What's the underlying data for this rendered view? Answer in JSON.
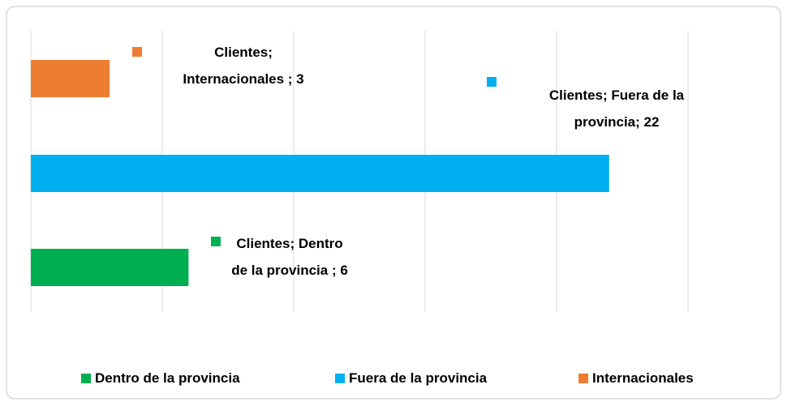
{
  "chart_data": {
    "type": "barh",
    "series": [
      {
        "name": "Dentro de la provincia",
        "color": "#00b050",
        "values": [
          6
        ],
        "value_labels": [
          "Clientes; Dentro de la provincia ; 6"
        ]
      },
      {
        "name": "Fuera de la provincia",
        "color": "#00b0f0",
        "values": [
          22
        ],
        "value_labels": [
          "Clientes; Fuera de la provincia; 22"
        ]
      },
      {
        "name": "Internacionales",
        "color": "#ed7d31",
        "values": [
          3
        ],
        "value_labels": [
          "Clientes; Internacionales ; 3"
        ]
      }
    ],
    "xlim": [
      0,
      25
    ],
    "xticks": [
      0,
      5,
      10,
      15,
      20,
      25
    ],
    "grid": true,
    "legend": "bottom"
  }
}
